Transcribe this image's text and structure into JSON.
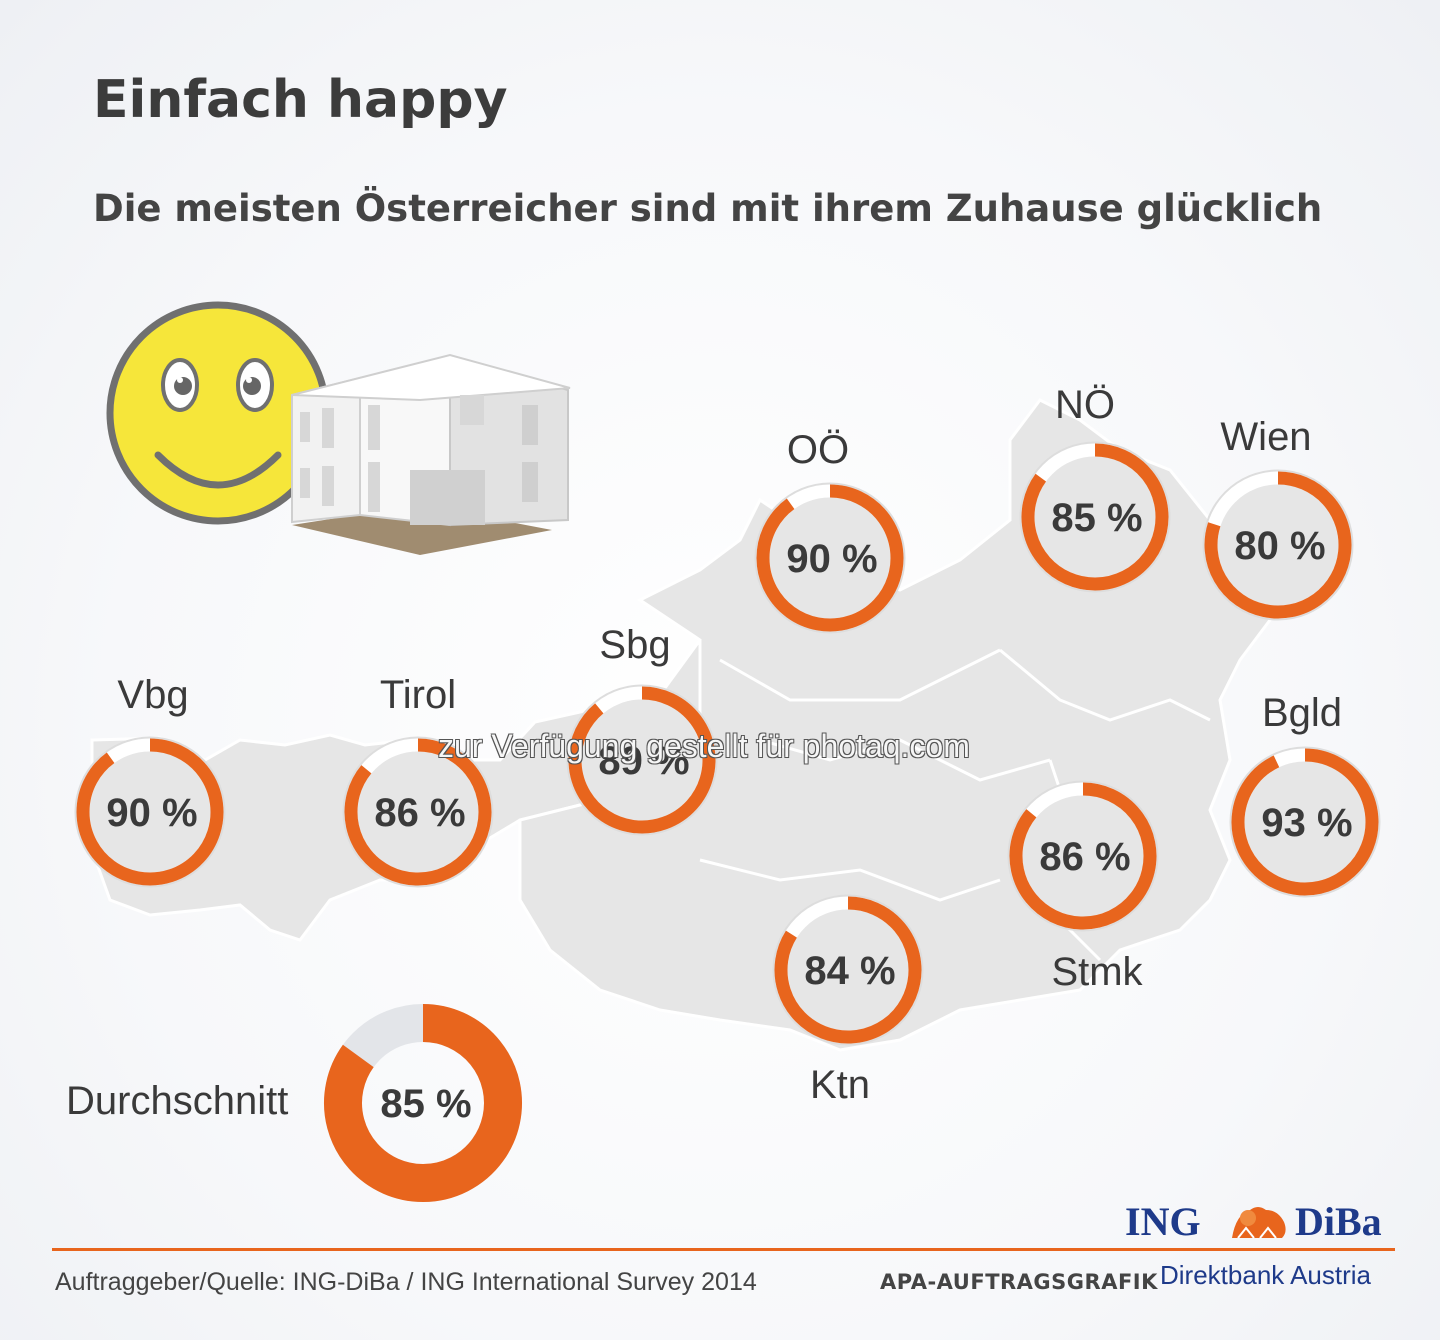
{
  "header": {
    "title": "Einfach happy",
    "subtitle": "Die meisten Österreicher sind mit ihrem Zuhause glücklich"
  },
  "colors": {
    "accent": "#e8651d",
    "ring_rest": "#ffffff",
    "avg_rest": "#e3e5e9",
    "map": "#e6e6e6",
    "text": "#3a3a3a",
    "brand": "#1e3a8a"
  },
  "icons": [
    "smiley-face-icon",
    "house-icon",
    "lion-icon"
  ],
  "chart_data": {
    "type": "donut",
    "value_format": "{v} %",
    "series": [
      {
        "name": "Vbg",
        "value": 90
      },
      {
        "name": "Tirol",
        "value": 86
      },
      {
        "name": "Sbg",
        "value": 89
      },
      {
        "name": "OÖ",
        "value": 90
      },
      {
        "name": "NÖ",
        "value": 85
      },
      {
        "name": "Wien",
        "value": 80
      },
      {
        "name": "Bgld",
        "value": 93
      },
      {
        "name": "Stmk",
        "value": 86
      },
      {
        "name": "Ktn",
        "value": 84
      }
    ],
    "average": {
      "label": "Durchschnitt",
      "value": 85
    }
  },
  "watermark": "zur Verfügung gestellt für photaq.com",
  "footer": {
    "source": "Auftraggeber/Quelle: ING-DiBa / ING International Survey 2014",
    "apa": "APA-AUFTRAGSGRAFIK",
    "logo_ing": "ING",
    "logo_diba": "DiBa",
    "logo_sub": "Direktbank Austria"
  }
}
